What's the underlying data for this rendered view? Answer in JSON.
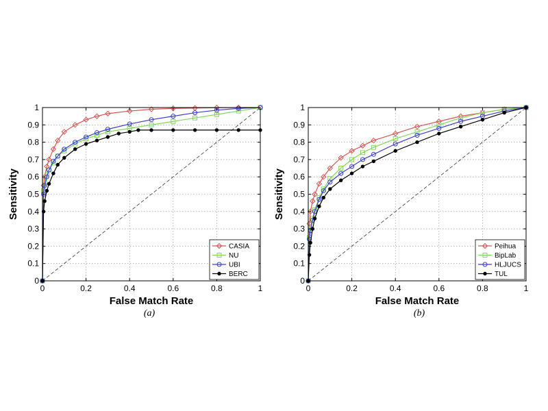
{
  "chart_data": [
    {
      "type": "line",
      "caption": "(a)",
      "xlabel": "False Match Rate",
      "ylabel": "Sensitivity",
      "xlim": [
        0,
        1
      ],
      "ylim": [
        0,
        1
      ],
      "xticks": [
        "0",
        "0.2",
        "0.4",
        "0.6",
        "0.8",
        "1"
      ],
      "yticks": [
        "0",
        "0.1",
        "0.2",
        "0.3",
        "0.4",
        "0.5",
        "0.6",
        "0.7",
        "0.8",
        "0.9",
        "1"
      ],
      "grid": true,
      "legend_position": "bottom-right",
      "diagonal": true,
      "series": [
        {
          "name": "CASIA",
          "color": "#d9534f",
          "marker": "diamond",
          "x": [
            0,
            0.005,
            0.01,
            0.02,
            0.03,
            0.05,
            0.07,
            0.1,
            0.15,
            0.2,
            0.25,
            0.3,
            0.4,
            0.5,
            0.6,
            0.7,
            0.8,
            0.9,
            1.0
          ],
          "y": [
            0,
            0.55,
            0.6,
            0.66,
            0.7,
            0.76,
            0.81,
            0.86,
            0.9,
            0.93,
            0.95,
            0.965,
            0.98,
            0.99,
            0.995,
            0.997,
            0.999,
            1.0,
            1.0
          ]
        },
        {
          "name": "NU",
          "color": "#7ed957",
          "marker": "square",
          "x": [
            0,
            0.005,
            0.01,
            0.02,
            0.03,
            0.05,
            0.07,
            0.1,
            0.15,
            0.2,
            0.25,
            0.3,
            0.4,
            0.5,
            0.6,
            0.7,
            0.8,
            0.9,
            1.0
          ],
          "y": [
            0,
            0.52,
            0.57,
            0.61,
            0.64,
            0.68,
            0.72,
            0.75,
            0.79,
            0.82,
            0.84,
            0.86,
            0.88,
            0.9,
            0.92,
            0.94,
            0.96,
            0.98,
            1.0
          ]
        },
        {
          "name": "UBI",
          "color": "#3b3bdb",
          "marker": "circle",
          "x": [
            0,
            0.005,
            0.01,
            0.02,
            0.03,
            0.05,
            0.07,
            0.1,
            0.15,
            0.2,
            0.25,
            0.3,
            0.4,
            0.5,
            0.6,
            0.7,
            0.8,
            0.9,
            1.0
          ],
          "y": [
            0,
            0.5,
            0.55,
            0.6,
            0.64,
            0.69,
            0.72,
            0.76,
            0.8,
            0.83,
            0.855,
            0.875,
            0.905,
            0.93,
            0.95,
            0.97,
            0.985,
            0.995,
            1.0
          ]
        },
        {
          "name": "BERC",
          "color": "#000000",
          "marker": "dot",
          "x": [
            0,
            0.005,
            0.01,
            0.02,
            0.03,
            0.05,
            0.07,
            0.1,
            0.15,
            0.2,
            0.25,
            0.3,
            0.35,
            0.4,
            0.44,
            0.5,
            0.6,
            0.7,
            0.8,
            0.9,
            1.0
          ],
          "y": [
            0,
            0.4,
            0.46,
            0.52,
            0.56,
            0.62,
            0.67,
            0.71,
            0.76,
            0.79,
            0.81,
            0.83,
            0.85,
            0.86,
            0.87,
            0.87,
            0.87,
            0.87,
            0.87,
            0.87,
            0.87
          ]
        }
      ]
    },
    {
      "type": "line",
      "caption": "(b)",
      "xlabel": "False Match Rate",
      "ylabel": "Sensitivity",
      "xlim": [
        0,
        1
      ],
      "ylim": [
        0,
        1
      ],
      "xticks": [
        "0",
        "0.2",
        "0.4",
        "0.6",
        "0.8",
        "1"
      ],
      "yticks": [
        "0",
        "0.1",
        "0.2",
        "0.3",
        "0.4",
        "0.5",
        "0.6",
        "0.7",
        "0.8",
        "0.9",
        "1"
      ],
      "grid": true,
      "legend_position": "bottom-right",
      "diagonal": true,
      "series": [
        {
          "name": "Peihua",
          "color": "#d9534f",
          "marker": "diamond",
          "x": [
            0,
            0.005,
            0.01,
            0.02,
            0.03,
            0.05,
            0.07,
            0.1,
            0.15,
            0.2,
            0.25,
            0.3,
            0.4,
            0.5,
            0.6,
            0.7,
            0.8,
            0.9,
            1.0
          ],
          "y": [
            0,
            0.33,
            0.4,
            0.46,
            0.5,
            0.56,
            0.6,
            0.65,
            0.71,
            0.75,
            0.78,
            0.81,
            0.85,
            0.89,
            0.92,
            0.95,
            0.97,
            0.99,
            1.0
          ]
        },
        {
          "name": "BipLab",
          "color": "#7ed957",
          "marker": "square",
          "x": [
            0,
            0.005,
            0.01,
            0.02,
            0.03,
            0.05,
            0.07,
            0.1,
            0.15,
            0.2,
            0.25,
            0.3,
            0.4,
            0.5,
            0.6,
            0.7,
            0.8,
            0.9,
            1.0
          ],
          "y": [
            0,
            0.25,
            0.3,
            0.36,
            0.41,
            0.48,
            0.53,
            0.59,
            0.65,
            0.7,
            0.74,
            0.77,
            0.82,
            0.86,
            0.9,
            0.94,
            0.97,
            0.99,
            1.0
          ]
        },
        {
          "name": "HLJUCS",
          "color": "#3b3bdb",
          "marker": "circle",
          "x": [
            0,
            0.005,
            0.01,
            0.02,
            0.03,
            0.05,
            0.07,
            0.1,
            0.15,
            0.2,
            0.25,
            0.3,
            0.4,
            0.5,
            0.6,
            0.7,
            0.8,
            0.9,
            1.0
          ],
          "y": [
            0,
            0.24,
            0.29,
            0.35,
            0.4,
            0.47,
            0.52,
            0.57,
            0.62,
            0.66,
            0.7,
            0.73,
            0.79,
            0.84,
            0.88,
            0.92,
            0.95,
            0.98,
            1.0
          ]
        },
        {
          "name": "TUL",
          "color": "#000000",
          "marker": "dot",
          "x": [
            0,
            0.005,
            0.01,
            0.02,
            0.03,
            0.05,
            0.07,
            0.1,
            0.15,
            0.2,
            0.25,
            0.3,
            0.4,
            0.5,
            0.6,
            0.7,
            0.8,
            0.9,
            1.0
          ],
          "y": [
            0,
            0.15,
            0.22,
            0.3,
            0.36,
            0.43,
            0.48,
            0.53,
            0.58,
            0.62,
            0.66,
            0.69,
            0.75,
            0.8,
            0.85,
            0.89,
            0.93,
            0.97,
            1.0
          ]
        }
      ]
    }
  ]
}
